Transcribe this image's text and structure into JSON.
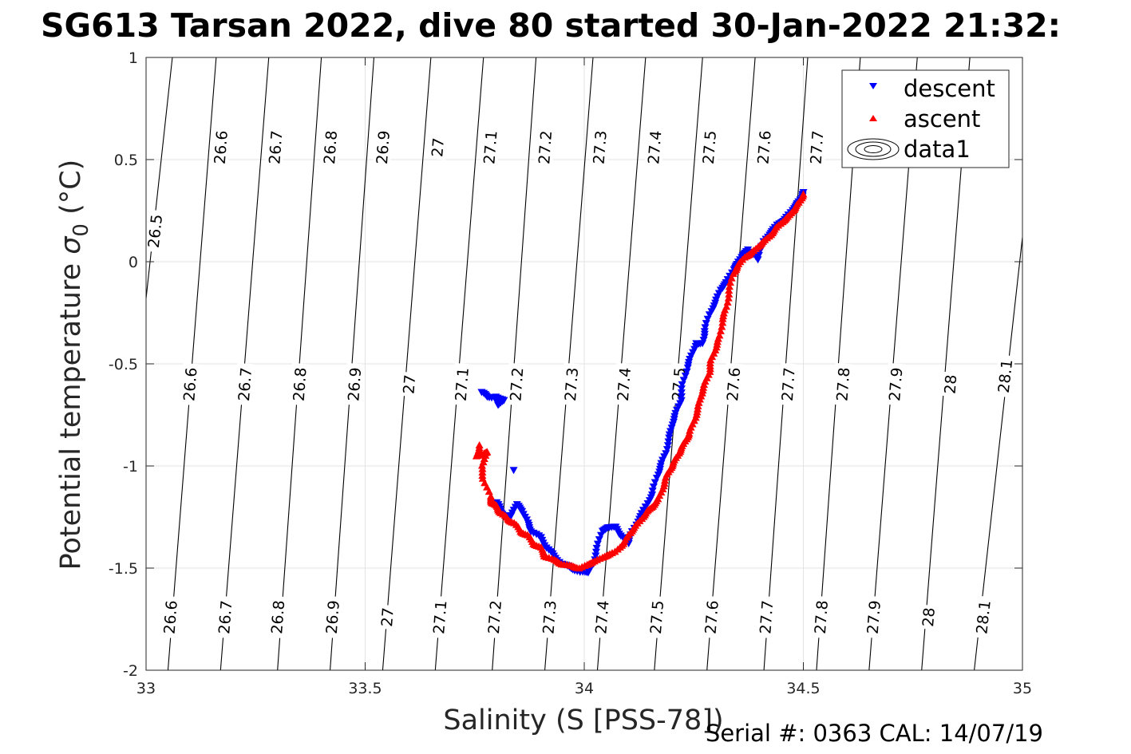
{
  "chart_data": {
    "type": "scatter",
    "title": "SG613 Tarsan 2022, dive 80 started 30-Jan-2022 21:32:",
    "xlabel": "Salinity (S [PSS-78])",
    "ylabel_main": "Potential temperature ",
    "ylabel_sym": "σ",
    "ylabel_sub": "0",
    "ylabel_unit": " (°C)",
    "footer": "Serial #: 0363  CAL: 14/07/19",
    "xlim": [
      33,
      35
    ],
    "ylim": [
      -2,
      1
    ],
    "xticks": [
      33,
      33.5,
      34,
      34.5,
      35
    ],
    "xtick_labels": [
      "33",
      "33.5",
      "34",
      "34.5",
      "35"
    ],
    "yticks": [
      -2,
      -1.5,
      -1,
      -0.5,
      0,
      0.5,
      1
    ],
    "ytick_labels": [
      "-2",
      "-1.5",
      "-1",
      "-0.5",
      "0",
      "0.5",
      "1"
    ],
    "grid": true,
    "legend_position": "top-right",
    "legend": [
      {
        "label": "descent",
        "marker": "triangle-down",
        "color": "#0000ff"
      },
      {
        "label": "ascent",
        "marker": "triangle-up",
        "color": "#ff0000"
      },
      {
        "label": "data1",
        "marker": "contour",
        "color": "#000000"
      }
    ],
    "contours": {
      "color": "#000000",
      "lines": [
        {
          "level": "26.5",
          "points": [
            [
              33.0,
              -0.18
            ],
            [
              33.06,
              1.0
            ]
          ],
          "labels": [
            [
              33.02,
              0.15
            ]
          ]
        },
        {
          "level": "26.6",
          "points": [
            [
              33.05,
              -2.0
            ],
            [
              33.16,
              1.0
            ]
          ],
          "labels": [
            [
              33.055,
              -1.74
            ],
            [
              33.1,
              -0.6
            ],
            [
              33.17,
              0.56
            ]
          ]
        },
        {
          "level": "26.7",
          "points": [
            [
              33.17,
              -2.0
            ],
            [
              33.28,
              1.0
            ]
          ],
          "labels": [
            [
              33.18,
              -1.74
            ],
            [
              33.225,
              -0.6
            ],
            [
              33.295,
              0.56
            ]
          ]
        },
        {
          "level": "26.8",
          "points": [
            [
              33.3,
              -2.0
            ],
            [
              33.4,
              1.0
            ]
          ],
          "labels": [
            [
              33.3,
              -1.74
            ],
            [
              33.35,
              -0.6
            ],
            [
              33.42,
              0.56
            ]
          ]
        },
        {
          "level": "26.9",
          "points": [
            [
              33.42,
              -2.0
            ],
            [
              33.52,
              1.0
            ]
          ],
          "labels": [
            [
              33.425,
              -1.74
            ],
            [
              33.475,
              -0.6
            ],
            [
              33.54,
              0.56
            ]
          ]
        },
        {
          "level": "27",
          "points": [
            [
              33.54,
              -2.0
            ],
            [
              33.65,
              1.0
            ]
          ],
          "labels": [
            [
              33.55,
              -1.74
            ],
            [
              33.6,
              -0.6
            ],
            [
              33.665,
              0.56
            ]
          ]
        },
        {
          "level": "27.1",
          "points": [
            [
              33.66,
              -2.0
            ],
            [
              33.77,
              1.0
            ]
          ],
          "labels": [
            [
              33.67,
              -1.74
            ],
            [
              33.72,
              -0.6
            ],
            [
              33.785,
              0.56
            ]
          ]
        },
        {
          "level": "27.2",
          "points": [
            [
              33.79,
              -2.0
            ],
            [
              33.89,
              1.0
            ]
          ],
          "labels": [
            [
              33.795,
              -1.74
            ],
            [
              33.845,
              -0.6
            ],
            [
              33.91,
              0.56
            ]
          ]
        },
        {
          "level": "27.3",
          "points": [
            [
              33.91,
              -2.0
            ],
            [
              34.02,
              1.0
            ]
          ],
          "labels": [
            [
              33.92,
              -1.74
            ],
            [
              33.97,
              -0.6
            ],
            [
              34.035,
              0.56
            ]
          ]
        },
        {
          "level": "27.4",
          "points": [
            [
              34.03,
              -2.0
            ],
            [
              34.14,
              1.0
            ]
          ],
          "labels": [
            [
              34.04,
              -1.74
            ],
            [
              34.09,
              -0.6
            ],
            [
              34.16,
              0.56
            ]
          ]
        },
        {
          "level": "27.5",
          "points": [
            [
              34.16,
              -2.0
            ],
            [
              34.27,
              1.0
            ]
          ],
          "labels": [
            [
              34.165,
              -1.74
            ],
            [
              34.215,
              -0.6
            ],
            [
              34.285,
              0.56
            ]
          ]
        },
        {
          "level": "27.6",
          "points": [
            [
              34.28,
              -2.0
            ],
            [
              34.39,
              1.0
            ]
          ],
          "labels": [
            [
              34.29,
              -1.74
            ],
            [
              34.34,
              -0.6
            ],
            [
              34.41,
              0.56
            ]
          ]
        },
        {
          "level": "27.7",
          "points": [
            [
              34.41,
              -2.0
            ],
            [
              34.51,
              1.0
            ]
          ],
          "labels": [
            [
              34.415,
              -1.74
            ],
            [
              34.465,
              -0.6
            ],
            [
              34.53,
              0.56
            ]
          ]
        },
        {
          "level": "27.8",
          "points": [
            [
              34.53,
              -2.0
            ],
            [
              34.63,
              1.0
            ]
          ],
          "labels": [
            [
              34.54,
              -1.74
            ],
            [
              34.59,
              -0.6
            ]
          ]
        },
        {
          "level": "27.9",
          "points": [
            [
              34.65,
              -2.0
            ],
            [
              34.76,
              1.0
            ]
          ],
          "labels": [
            [
              34.66,
              -1.74
            ],
            [
              34.71,
              -0.6
            ]
          ]
        },
        {
          "level": "28",
          "points": [
            [
              34.77,
              -2.0
            ],
            [
              34.88,
              1.0
            ]
          ],
          "labels": [
            [
              34.785,
              -1.74
            ],
            [
              34.835,
              -0.6
            ]
          ]
        },
        {
          "level": "28.1",
          "points": [
            [
              34.89,
              -2.0
            ],
            [
              35.0,
              0.12
            ]
          ],
          "labels": [
            [
              34.91,
              -1.74
            ],
            [
              34.96,
              -0.56
            ]
          ]
        }
      ]
    },
    "series": [
      {
        "name": "descent",
        "marker": "triangle-down",
        "color": "#0000ff",
        "points": [
          [
            33.765,
            -0.64
          ],
          [
            33.78,
            -0.66
          ],
          [
            33.8,
            -0.67
          ],
          [
            33.805,
            -0.7
          ],
          [
            33.815,
            -0.68
          ],
          [
            33.8,
            -0.66
          ],
          [
            33.84,
            -1.02
          ],
          [
            33.8,
            -1.18
          ],
          [
            33.81,
            -1.22
          ],
          [
            33.82,
            -1.25
          ],
          [
            33.835,
            -1.24
          ],
          [
            33.845,
            -1.19
          ],
          [
            33.86,
            -1.22
          ],
          [
            33.87,
            -1.28
          ],
          [
            33.88,
            -1.32
          ],
          [
            33.9,
            -1.35
          ],
          [
            33.915,
            -1.4
          ],
          [
            33.93,
            -1.44
          ],
          [
            33.95,
            -1.48
          ],
          [
            33.97,
            -1.5
          ],
          [
            33.99,
            -1.52
          ],
          [
            34.01,
            -1.52
          ],
          [
            34.02,
            -1.48
          ],
          [
            34.03,
            -1.4
          ],
          [
            34.04,
            -1.32
          ],
          [
            34.055,
            -1.3
          ],
          [
            34.07,
            -1.3
          ],
          [
            34.085,
            -1.34
          ],
          [
            34.1,
            -1.38
          ],
          [
            34.11,
            -1.32
          ],
          [
            34.125,
            -1.26
          ],
          [
            34.14,
            -1.2
          ],
          [
            34.155,
            -1.14
          ],
          [
            34.165,
            -1.06
          ],
          [
            34.175,
            -1.0
          ],
          [
            34.185,
            -0.94
          ],
          [
            34.195,
            -0.86
          ],
          [
            34.2,
            -0.8
          ],
          [
            34.21,
            -0.74
          ],
          [
            34.22,
            -0.68
          ],
          [
            34.225,
            -0.6
          ],
          [
            34.235,
            -0.52
          ],
          [
            34.245,
            -0.46
          ],
          [
            34.255,
            -0.4
          ],
          [
            34.27,
            -0.4
          ],
          [
            34.275,
            -0.34
          ],
          [
            34.285,
            -0.26
          ],
          [
            34.3,
            -0.2
          ],
          [
            34.31,
            -0.14
          ],
          [
            34.325,
            -0.1
          ],
          [
            34.34,
            -0.04
          ],
          [
            34.35,
            -0.01
          ],
          [
            34.36,
            0.03
          ],
          [
            34.375,
            0.06
          ],
          [
            34.395,
            0.01
          ],
          [
            34.41,
            0.1
          ],
          [
            34.425,
            0.14
          ],
          [
            34.44,
            0.18
          ],
          [
            34.455,
            0.2
          ],
          [
            34.47,
            0.24
          ],
          [
            34.485,
            0.28
          ],
          [
            34.495,
            0.31
          ],
          [
            34.5,
            0.34
          ]
        ]
      },
      {
        "name": "ascent",
        "marker": "triangle-up",
        "color": "#ff0000",
        "points": [
          [
            33.76,
            -0.9
          ],
          [
            33.755,
            -0.95
          ],
          [
            33.77,
            -0.94
          ],
          [
            33.78,
            -0.93
          ],
          [
            33.765,
            -1.0
          ],
          [
            33.77,
            -1.06
          ],
          [
            33.785,
            -1.15
          ],
          [
            33.79,
            -1.18
          ],
          [
            33.8,
            -1.2
          ],
          [
            33.81,
            -1.23
          ],
          [
            33.825,
            -1.26
          ],
          [
            33.84,
            -1.28
          ],
          [
            33.855,
            -1.32
          ],
          [
            33.87,
            -1.34
          ],
          [
            33.885,
            -1.38
          ],
          [
            33.9,
            -1.4
          ],
          [
            33.91,
            -1.44
          ],
          [
            33.93,
            -1.46
          ],
          [
            33.95,
            -1.48
          ],
          [
            33.97,
            -1.49
          ],
          [
            33.99,
            -1.5
          ],
          [
            34.01,
            -1.48
          ],
          [
            34.03,
            -1.46
          ],
          [
            34.05,
            -1.44
          ],
          [
            34.07,
            -1.42
          ],
          [
            34.09,
            -1.38
          ],
          [
            34.1,
            -1.34
          ],
          [
            34.115,
            -1.3
          ],
          [
            34.13,
            -1.26
          ],
          [
            34.145,
            -1.22
          ],
          [
            34.155,
            -1.2
          ],
          [
            34.17,
            -1.16
          ],
          [
            34.18,
            -1.1
          ],
          [
            34.19,
            -1.04
          ],
          [
            34.2,
            -1.0
          ],
          [
            34.21,
            -0.96
          ],
          [
            34.22,
            -0.92
          ],
          [
            34.23,
            -0.88
          ],
          [
            34.24,
            -0.84
          ],
          [
            34.25,
            -0.78
          ],
          [
            34.26,
            -0.72
          ],
          [
            34.265,
            -0.66
          ],
          [
            34.275,
            -0.6
          ],
          [
            34.285,
            -0.54
          ],
          [
            34.29,
            -0.48
          ],
          [
            34.3,
            -0.42
          ],
          [
            34.31,
            -0.36
          ],
          [
            34.315,
            -0.28
          ],
          [
            34.325,
            -0.22
          ],
          [
            34.33,
            -0.14
          ],
          [
            34.34,
            -0.06
          ],
          [
            34.35,
            -0.02
          ],
          [
            34.365,
            0.02
          ],
          [
            34.38,
            0.04
          ],
          [
            34.395,
            0.07
          ],
          [
            34.41,
            0.1
          ],
          [
            34.425,
            0.13
          ],
          [
            34.44,
            0.17
          ],
          [
            34.455,
            0.2
          ],
          [
            34.47,
            0.23
          ],
          [
            34.48,
            0.26
          ],
          [
            34.49,
            0.29
          ],
          [
            34.5,
            0.33
          ]
        ]
      }
    ]
  }
}
